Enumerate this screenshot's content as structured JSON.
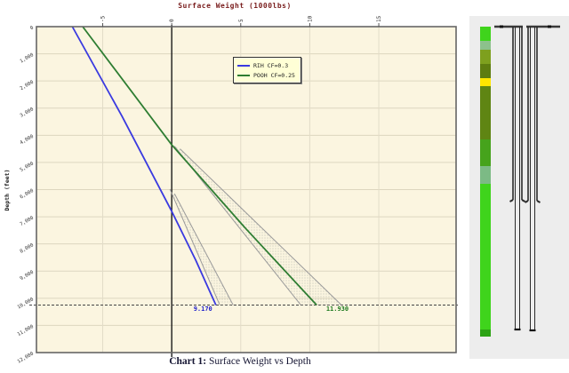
{
  "page": {
    "bg": "#ffffff"
  },
  "chart": {
    "title": "Surface Weight (1000lbs)",
    "ylabel": "Depth (feet)",
    "caption_bold": "Chart 1:",
    "caption_rest": " Surface Weight vs Depth"
  },
  "chart_data": {
    "type": "line",
    "title": "Surface Weight (1000lbs)",
    "xlabel": "Surface Weight (1000lbs)",
    "ylabel": "Depth (feet)",
    "xlim": [
      -9.8,
      20.6
    ],
    "ylim": [
      0,
      12000
    ],
    "y_inverted": true,
    "grid": true,
    "legend_position": "upper-middle",
    "xticks": [
      -5,
      0,
      5,
      10,
      15
    ],
    "yticks": [
      0,
      1000,
      2000,
      3000,
      4000,
      5000,
      6000,
      7000,
      8000,
      9000,
      10000,
      11000,
      12000
    ],
    "zero_line_x": 0,
    "target_depth_line": 10250,
    "colors": {
      "plot_bg": "#fbf5e0",
      "grid_h": "#ddd6bf",
      "grid_v": "#e2dcc8",
      "border": "#666666",
      "zero_line": "#1a1a1a",
      "dashed_line": "#444444",
      "envelope": "#9a9a9a",
      "title": "#7a1f1f"
    },
    "series": [
      {
        "name": "RIH CF=0.3",
        "color": "#3a3ae0",
        "points": [
          [
            -7.2,
            0
          ],
          [
            -3.6,
            3300
          ],
          [
            0,
            6800
          ],
          [
            1.74,
            8600
          ],
          [
            3.2,
            10250
          ]
        ]
      },
      {
        "name": "POOH CF=0.25",
        "color": "#2e7d32",
        "points": [
          [
            -6.45,
            0
          ],
          [
            0,
            4350
          ],
          [
            5.3,
            7400
          ],
          [
            10.5,
            10250
          ]
        ]
      }
    ],
    "envelopes": [
      {
        "lines": [
          [
            [
              0.2,
              4400
            ],
            [
              9.35,
              10250
            ]
          ],
          [
            [
              0.6,
              4500
            ],
            [
              12.3,
              10250
            ]
          ]
        ]
      },
      {
        "lines": [
          [
            [
              -0.13,
              5980
            ],
            [
              3.48,
              10250
            ]
          ],
          [
            [
              0.2,
              6150
            ],
            [
              4.45,
              10250
            ]
          ]
        ]
      }
    ],
    "annotations": [
      {
        "text": "9.170",
        "color": "#2222cc",
        "x": 2.26,
        "depth": 10470
      },
      {
        "text": "11.930",
        "color": "#1e7a1e",
        "x": 12.0,
        "depth": 10470
      }
    ]
  },
  "wellbore": {
    "panel": {
      "bg": "#ededed"
    },
    "strip": {
      "segments": [
        {
          "h": 16,
          "color": "#3fd41c"
        },
        {
          "h": 10,
          "color": "#8cc18c"
        },
        {
          "h": 16,
          "color": "#7ea01e"
        },
        {
          "h": 16,
          "color": "#5e7d10"
        },
        {
          "h": 9,
          "color": "#ffe600"
        },
        {
          "h": 60,
          "color": "#5f8513"
        },
        {
          "h": 30,
          "color": "#46a31c"
        },
        {
          "h": 20,
          "color": "#7cba85"
        },
        {
          "h": 164,
          "color": "#3fd41c"
        },
        {
          "h": 8,
          "color": "#2da315"
        }
      ]
    },
    "strings": [
      {
        "cap": [
          556,
          588
        ],
        "outer": [
          577,
          587
        ],
        "inner": [
          579.5,
          584.5
        ],
        "hanger_x": 562,
        "shoe_y": 225,
        "bottom_y": 371
      },
      {
        "cap": [
          592,
          630
        ],
        "outer": [
          594,
          604
        ],
        "inner": [
          596.5,
          601.5
        ],
        "hanger_x": 616,
        "shoe_y": 226,
        "bottom_y": 372
      }
    ]
  }
}
